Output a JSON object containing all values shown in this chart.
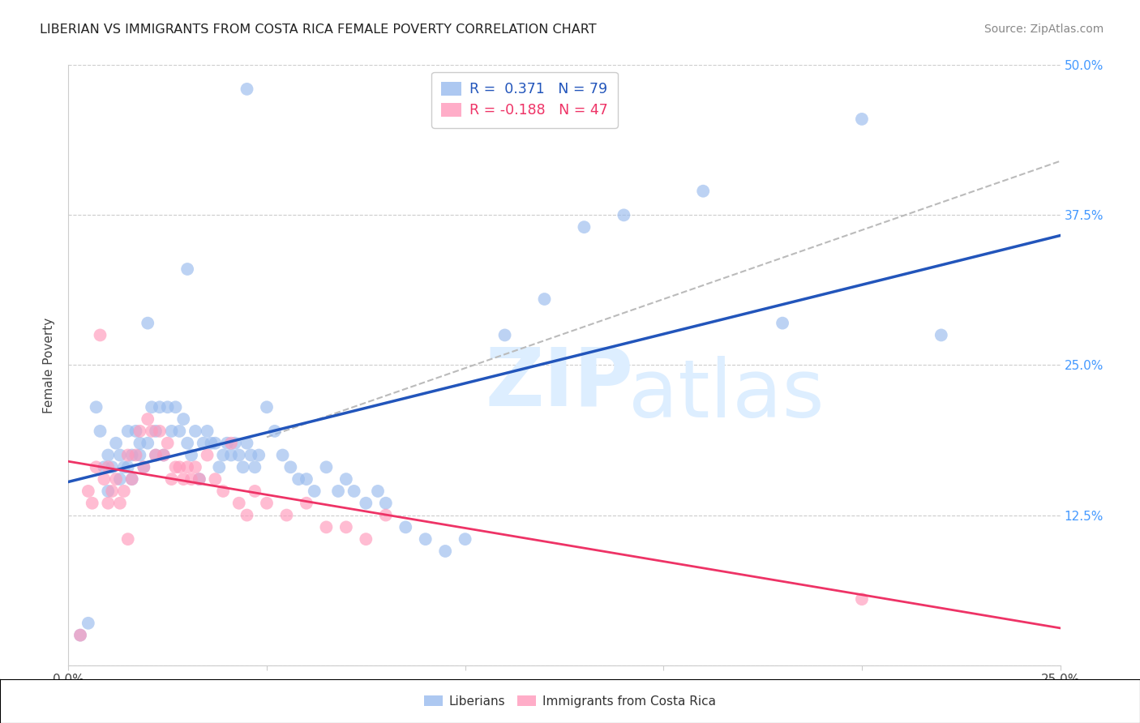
{
  "title": "LIBERIAN VS IMMIGRANTS FROM COSTA RICA FEMALE POVERTY CORRELATION CHART",
  "source": "Source: ZipAtlas.com",
  "ylabel": "Female Poverty",
  "xlim": [
    0.0,
    0.25
  ],
  "ylim": [
    0.0,
    0.5
  ],
  "liberian_R": 0.371,
  "liberian_N": 79,
  "costarica_R": -0.188,
  "costarica_N": 47,
  "liberian_color": "#99BBEE",
  "costarica_color": "#FF99BB",
  "liberian_line_color": "#2255BB",
  "costarica_line_color": "#EE3366",
  "dashed_line_color": "#BBBBBB",
  "right_tick_color": "#4499FF",
  "grid_color": "#CCCCCC",
  "liberian_x": [
    0.003,
    0.005,
    0.007,
    0.008,
    0.009,
    0.01,
    0.01,
    0.011,
    0.012,
    0.013,
    0.013,
    0.014,
    0.015,
    0.015,
    0.016,
    0.016,
    0.017,
    0.018,
    0.018,
    0.019,
    0.02,
    0.021,
    0.022,
    0.022,
    0.023,
    0.024,
    0.025,
    0.026,
    0.027,
    0.028,
    0.029,
    0.03,
    0.031,
    0.032,
    0.033,
    0.034,
    0.035,
    0.036,
    0.037,
    0.038,
    0.039,
    0.04,
    0.041,
    0.042,
    0.043,
    0.044,
    0.045,
    0.046,
    0.047,
    0.048,
    0.05,
    0.052,
    0.054,
    0.056,
    0.058,
    0.06,
    0.062,
    0.065,
    0.068,
    0.07,
    0.072,
    0.075,
    0.078,
    0.08,
    0.085,
    0.09,
    0.095,
    0.1,
    0.11,
    0.12,
    0.13,
    0.14,
    0.16,
    0.18,
    0.2,
    0.22,
    0.045,
    0.03,
    0.02
  ],
  "liberian_y": [
    0.025,
    0.035,
    0.215,
    0.195,
    0.165,
    0.145,
    0.175,
    0.165,
    0.185,
    0.155,
    0.175,
    0.165,
    0.165,
    0.195,
    0.175,
    0.155,
    0.195,
    0.175,
    0.185,
    0.165,
    0.185,
    0.215,
    0.175,
    0.195,
    0.215,
    0.175,
    0.215,
    0.195,
    0.215,
    0.195,
    0.205,
    0.185,
    0.175,
    0.195,
    0.155,
    0.185,
    0.195,
    0.185,
    0.185,
    0.165,
    0.175,
    0.185,
    0.175,
    0.185,
    0.175,
    0.165,
    0.185,
    0.175,
    0.165,
    0.175,
    0.215,
    0.195,
    0.175,
    0.165,
    0.155,
    0.155,
    0.145,
    0.165,
    0.145,
    0.155,
    0.145,
    0.135,
    0.145,
    0.135,
    0.115,
    0.105,
    0.095,
    0.105,
    0.275,
    0.305,
    0.365,
    0.375,
    0.395,
    0.285,
    0.455,
    0.275,
    0.48,
    0.33,
    0.285
  ],
  "costarica_x": [
    0.003,
    0.005,
    0.006,
    0.007,
    0.008,
    0.009,
    0.01,
    0.011,
    0.012,
    0.013,
    0.014,
    0.015,
    0.016,
    0.017,
    0.018,
    0.019,
    0.02,
    0.021,
    0.022,
    0.023,
    0.024,
    0.025,
    0.026,
    0.027,
    0.028,
    0.029,
    0.03,
    0.031,
    0.032,
    0.033,
    0.035,
    0.037,
    0.039,
    0.041,
    0.043,
    0.045,
    0.047,
    0.05,
    0.055,
    0.06,
    0.065,
    0.07,
    0.075,
    0.08,
    0.2,
    0.01,
    0.015
  ],
  "costarica_y": [
    0.025,
    0.145,
    0.135,
    0.165,
    0.275,
    0.155,
    0.165,
    0.145,
    0.155,
    0.135,
    0.145,
    0.175,
    0.155,
    0.175,
    0.195,
    0.165,
    0.205,
    0.195,
    0.175,
    0.195,
    0.175,
    0.185,
    0.155,
    0.165,
    0.165,
    0.155,
    0.165,
    0.155,
    0.165,
    0.155,
    0.175,
    0.155,
    0.145,
    0.185,
    0.135,
    0.125,
    0.145,
    0.135,
    0.125,
    0.135,
    0.115,
    0.115,
    0.105,
    0.125,
    0.055,
    0.135,
    0.105
  ]
}
